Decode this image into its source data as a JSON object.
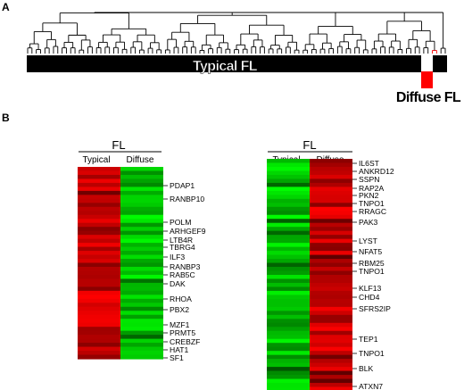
{
  "panels": {
    "a": {
      "letter": "A"
    },
    "b": {
      "letter": "B"
    }
  },
  "dendrogram": {
    "group_typical": "Typical FL",
    "group_diffuse": "Diffuse FL",
    "colors": {
      "typical_bar": "#000000",
      "diffuse_bar": "#ff0000",
      "highlight_branch": "#ff0000"
    }
  },
  "heatmap_left": {
    "title": "FL",
    "columns": [
      "Typical",
      "Diffuse"
    ],
    "genes": [
      "PDAP1",
      "RANBP10",
      "POLM",
      "ARHGEF9",
      "LTB4R",
      "TBRG4",
      "ILF3",
      "RANBP3",
      "RAB5C",
      "DAK",
      "RHOA",
      "PBX2",
      "MZF1",
      "PRMT5",
      "CREBZF",
      "HAT1",
      "SF1"
    ]
  },
  "heatmap_right": {
    "title": "FL",
    "columns": [
      "Typical",
      "Diffuse"
    ],
    "genes": [
      "IL6ST",
      "ANKRD12",
      "SSPN",
      "RAP2A",
      "PKN2",
      "TNPO1",
      "RRAGC",
      "PAK3",
      "LYST",
      "NFAT5",
      "RBM25",
      "TNPO1",
      "KLF13",
      "CHD4",
      "SFRS2IP",
      "TEP1",
      "TNPO1",
      "BLK",
      "ATXN7"
    ]
  },
  "colors": {
    "up": "#ff0000",
    "down": "#00dd00",
    "neutral": "#000000"
  }
}
